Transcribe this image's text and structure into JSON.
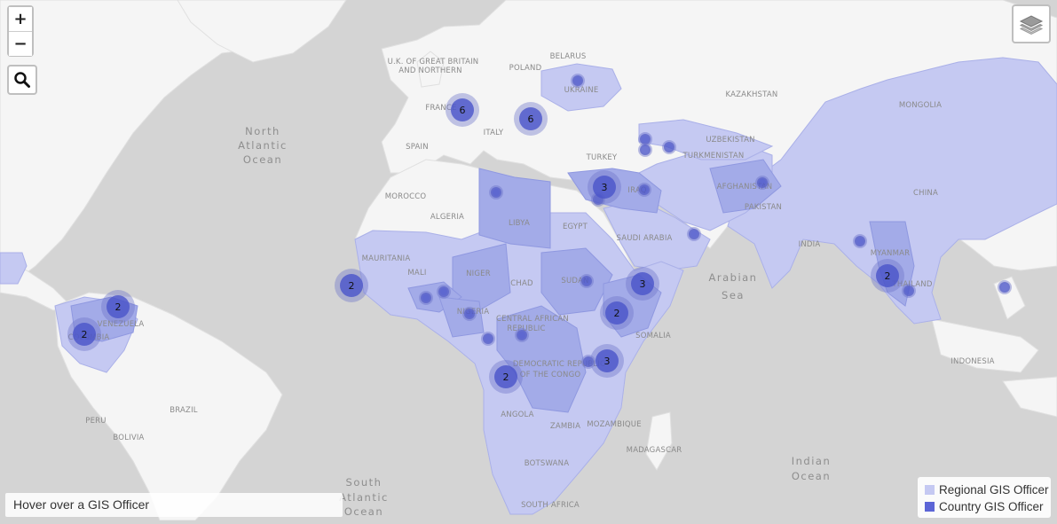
{
  "colors": {
    "ocean": "#d4d4d4",
    "land": "#f5f5f5",
    "regional": "#c5c9f2",
    "country": "#a3abe8",
    "marker": "#4a54c9",
    "marker_halo": "#6c74c9"
  },
  "controls": {
    "zoom_in": "+",
    "zoom_out": "−",
    "search_icon": "search-icon",
    "layers_icon": "layers-icon"
  },
  "hover_box": "Hover over a GIS Officer",
  "legend": {
    "regional": "Regional GIS Officer",
    "country": "Country GIS Officer"
  },
  "oceans": {
    "north_atlantic": [
      "North",
      "Atlantic",
      "Ocean"
    ],
    "south_atlantic": [
      "South",
      "Atlantic",
      "Ocean"
    ],
    "arabian_sea": [
      "Arabian",
      "Sea"
    ],
    "indian_ocean": [
      "Indian",
      "Ocean"
    ]
  },
  "country_labels": [
    "U.K. OF GREAT BRITAIN",
    "AND NORTHERN",
    "BELARUS",
    "POLAND",
    "UKRAINE",
    "KAZAKHSTAN",
    "MONGOLIA",
    "FRANCE",
    "ITALY",
    "SPAIN",
    "TURKEY",
    "UZBEKISTAN",
    "TURKMENISTAN",
    "AFGHANISTAN",
    "CHINA",
    "MOROCCO",
    "ALGERIA",
    "LIBYA",
    "EGYPT",
    "IRAQ",
    "SAUDI ARABIA",
    "PAKISTAN",
    "INDIA",
    "MYANMAR",
    "THAILAND",
    "MAURITANIA",
    "MALI",
    "NIGER",
    "CHAD",
    "SUDAN",
    "NIGERIA",
    "CENTRAL AFRICAN",
    "REPUBLIC",
    "SOMALIA",
    "VENEZUELA",
    "COLOMBIA",
    "DEMOCRATIC REPUBLIC",
    "OF THE CONGO",
    "INDONESIA",
    "PERU",
    "BRAZIL",
    "BOLIVIA",
    "ANGOLA",
    "ZAMBIA",
    "MOZAMBIQUE",
    "MADAGASCAR",
    "BOTSWANA",
    "SOUTH AFRICA"
  ],
  "clusters": [
    {
      "count": 6,
      "location": "France"
    },
    {
      "count": 6,
      "location": "Balkans"
    },
    {
      "count": 3,
      "location": "Syria / Lebanon"
    },
    {
      "count": 2,
      "location": "Senegal"
    },
    {
      "count": 2,
      "location": "Venezuela"
    },
    {
      "count": 2,
      "location": "Colombia"
    },
    {
      "count": 3,
      "location": "Yemen / Somalia"
    },
    {
      "count": 2,
      "location": "Ethiopia"
    },
    {
      "count": 3,
      "location": "Kenya / Uganda"
    },
    {
      "count": 2,
      "location": "DR Congo"
    },
    {
      "count": 2,
      "location": "Myanmar"
    }
  ]
}
